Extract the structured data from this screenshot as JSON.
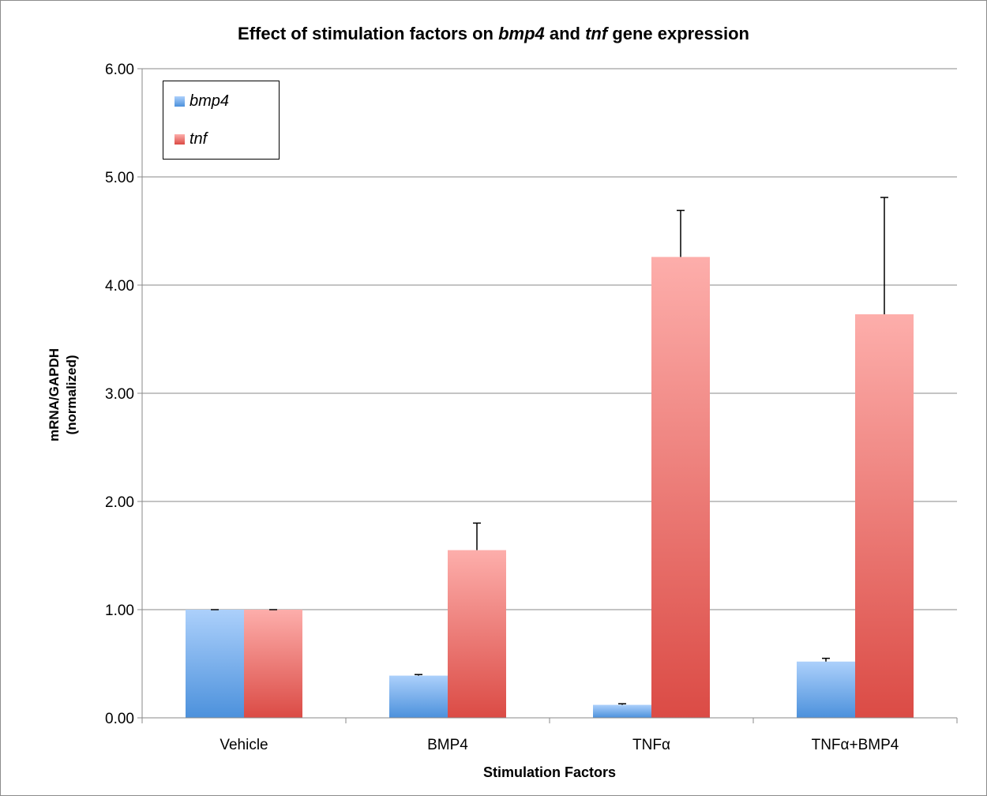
{
  "chart_data": {
    "type": "bar",
    "title_parts": [
      {
        "text": "Effect of stimulation factors on ",
        "italic": false
      },
      {
        "text": "bmp4",
        "italic": true
      },
      {
        "text": " and ",
        "italic": false
      },
      {
        "text": "tnf",
        "italic": true
      },
      {
        "text": " gene expression",
        "italic": false
      }
    ],
    "xlabel": "Stimulation Factors",
    "ylabel_lines": [
      "mRNA/GAPDH",
      "(normalized)"
    ],
    "categories": [
      "Vehicle",
      "BMP4",
      "TNFα",
      "TNFα+BMP4"
    ],
    "series": [
      {
        "name": "bmp4",
        "values": [
          1.0,
          0.39,
          0.12,
          0.52
        ],
        "errors": [
          0.0,
          0.01,
          0.01,
          0.03
        ],
        "color_top": "#acd0fb",
        "color_bottom": "#4c91dc"
      },
      {
        "name": "tnf",
        "values": [
          1.0,
          1.55,
          4.26,
          3.73
        ],
        "errors": [
          0.0,
          0.25,
          0.43,
          1.08
        ],
        "color_top": "#fdaeab",
        "color_bottom": "#db4b45"
      }
    ],
    "ylim": [
      0,
      6
    ],
    "yticks": [
      "0.00",
      "1.00",
      "2.00",
      "3.00",
      "4.00",
      "5.00",
      "6.00"
    ],
    "grid": true,
    "legend_position": "top-left"
  }
}
